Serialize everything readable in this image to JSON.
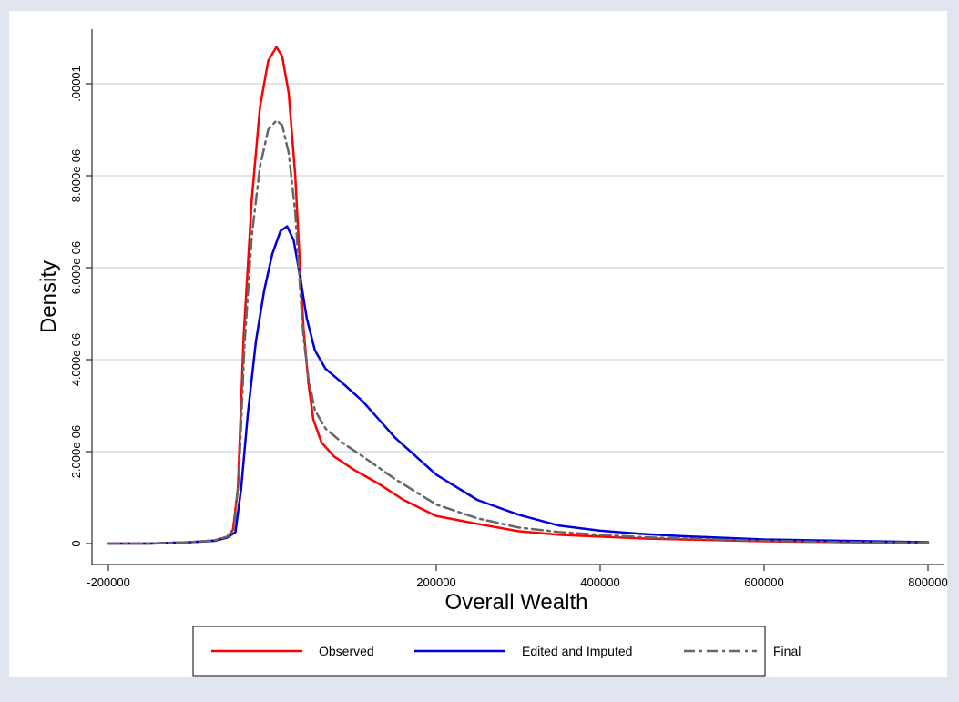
{
  "chart_data": {
    "type": "line",
    "xlabel": "Overall Wealth",
    "ylabel": "Density",
    "xlim": [
      -200000,
      800000
    ],
    "ylim": [
      0,
      1.1e-05
    ],
    "x_ticks": [
      {
        "value": -200000,
        "label": "-200000"
      },
      {
        "value": 200000,
        "label": "200000"
      },
      {
        "value": 400000,
        "label": "400000"
      },
      {
        "value": 600000,
        "label": "600000"
      },
      {
        "value": 800000,
        "label": "800000"
      }
    ],
    "y_ticks": [
      {
        "value": 0,
        "label": "0"
      },
      {
        "value": 2e-06,
        "label": "2.000e-06"
      },
      {
        "value": 4e-06,
        "label": "4.000e-06"
      },
      {
        "value": 6e-06,
        "label": "6.000e-06"
      },
      {
        "value": 8e-06,
        "label": "8.000e-06"
      },
      {
        "value": 1e-05,
        "label": ".00001"
      }
    ],
    "grid": "horizontal",
    "legend_position": "bottom",
    "series": [
      {
        "name": "Observed",
        "color": "#ff0000",
        "style": "solid",
        "points": [
          [
            -200000,
            0
          ],
          [
            -150000,
            0
          ],
          [
            -100000,
            3e-08
          ],
          [
            -70000,
            7e-08
          ],
          [
            -55000,
            1.5e-07
          ],
          [
            -48000,
            3e-07
          ],
          [
            -42000,
            1.2e-06
          ],
          [
            -35000,
            4.5e-06
          ],
          [
            -25000,
            7.5e-06
          ],
          [
            -15000,
            9.5e-06
          ],
          [
            -5000,
            1.05e-05
          ],
          [
            5000,
            1.08e-05
          ],
          [
            12000,
            1.06e-05
          ],
          [
            20000,
            9.8e-06
          ],
          [
            28000,
            8e-06
          ],
          [
            33000,
            6.3e-06
          ],
          [
            38000,
            4.7e-06
          ],
          [
            44000,
            3.5e-06
          ],
          [
            50000,
            2.7e-06
          ],
          [
            60000,
            2.2e-06
          ],
          [
            75000,
            1.9e-06
          ],
          [
            100000,
            1.6e-06
          ],
          [
            130000,
            1.3e-06
          ],
          [
            160000,
            9.5e-07
          ],
          [
            200000,
            6e-07
          ],
          [
            250000,
            4.3e-07
          ],
          [
            300000,
            2.7e-07
          ],
          [
            350000,
            1.9e-07
          ],
          [
            400000,
            1.5e-07
          ],
          [
            450000,
            1.1e-07
          ],
          [
            500000,
            9e-08
          ],
          [
            600000,
            5e-08
          ],
          [
            700000,
            3e-08
          ],
          [
            800000,
            2e-08
          ]
        ]
      },
      {
        "name": "Edited and Imputed",
        "color": "#0000dd",
        "style": "solid",
        "points": [
          [
            -200000,
            0
          ],
          [
            -150000,
            0
          ],
          [
            -100000,
            3e-08
          ],
          [
            -70000,
            6e-08
          ],
          [
            -55000,
            1.3e-07
          ],
          [
            -45000,
            2.5e-07
          ],
          [
            -38000,
            1.2e-06
          ],
          [
            -30000,
            2.8e-06
          ],
          [
            -20000,
            4.4e-06
          ],
          [
            -10000,
            5.5e-06
          ],
          [
            0,
            6.3e-06
          ],
          [
            10000,
            6.8e-06
          ],
          [
            18000,
            6.9e-06
          ],
          [
            26000,
            6.6e-06
          ],
          [
            34000,
            5.8e-06
          ],
          [
            42000,
            4.9e-06
          ],
          [
            52000,
            4.2e-06
          ],
          [
            65000,
            3.8e-06
          ],
          [
            85000,
            3.5e-06
          ],
          [
            110000,
            3.1e-06
          ],
          [
            150000,
            2.3e-06
          ],
          [
            200000,
            1.5e-06
          ],
          [
            250000,
            9.5e-07
          ],
          [
            300000,
            6.3e-07
          ],
          [
            350000,
            3.9e-07
          ],
          [
            400000,
            2.8e-07
          ],
          [
            450000,
            2.1e-07
          ],
          [
            500000,
            1.6e-07
          ],
          [
            600000,
            9e-08
          ],
          [
            700000,
            6e-08
          ],
          [
            800000,
            3e-08
          ]
        ]
      },
      {
        "name": "Final",
        "color": "#666666",
        "style": "dashdot",
        "points": [
          [
            -200000,
            0
          ],
          [
            -150000,
            0
          ],
          [
            -100000,
            3e-08
          ],
          [
            -70000,
            7e-08
          ],
          [
            -55000,
            1.5e-07
          ],
          [
            -47000,
            3e-07
          ],
          [
            -41000,
            1.4e-06
          ],
          [
            -34000,
            4.3e-06
          ],
          [
            -25000,
            6.7e-06
          ],
          [
            -15000,
            8.2e-06
          ],
          [
            -5000,
            9e-06
          ],
          [
            5000,
            9.2e-06
          ],
          [
            12000,
            9.1e-06
          ],
          [
            20000,
            8.5e-06
          ],
          [
            28000,
            7.2e-06
          ],
          [
            33000,
            5.8e-06
          ],
          [
            38000,
            4.5e-06
          ],
          [
            44000,
            3.6e-06
          ],
          [
            52000,
            2.9e-06
          ],
          [
            65000,
            2.5e-06
          ],
          [
            85000,
            2.2e-06
          ],
          [
            110000,
            1.9e-06
          ],
          [
            150000,
            1.4e-06
          ],
          [
            200000,
            8.5e-07
          ],
          [
            250000,
            5.5e-07
          ],
          [
            300000,
            3.5e-07
          ],
          [
            350000,
            2.5e-07
          ],
          [
            400000,
            1.9e-07
          ],
          [
            450000,
            1.4e-07
          ],
          [
            500000,
            1.1e-07
          ],
          [
            600000,
            6e-08
          ],
          [
            700000,
            3e-08
          ],
          [
            800000,
            2e-08
          ]
        ]
      }
    ]
  }
}
